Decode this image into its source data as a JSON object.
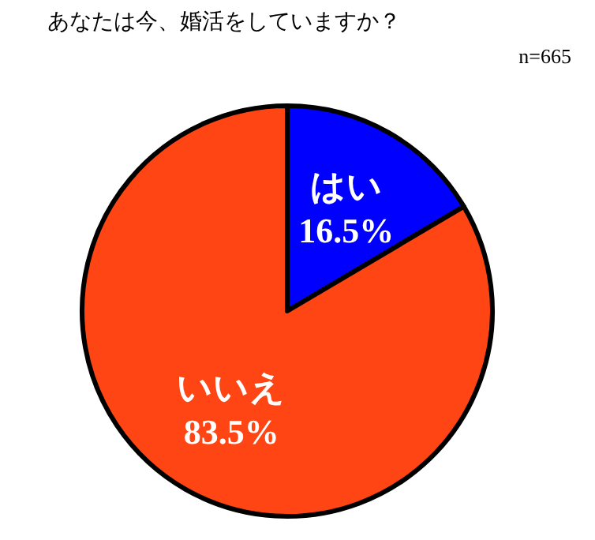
{
  "chart_data": {
    "type": "pie",
    "title": "あなたは今、婚活をしていますか？",
    "annotations": [
      "n=665"
    ],
    "categories": [
      "はい",
      "いいえ"
    ],
    "values": [
      16.5,
      83.5
    ],
    "colors": [
      "#0000ff",
      "#ff4513"
    ],
    "value_labels": [
      "16.5%",
      "83.5%"
    ]
  }
}
